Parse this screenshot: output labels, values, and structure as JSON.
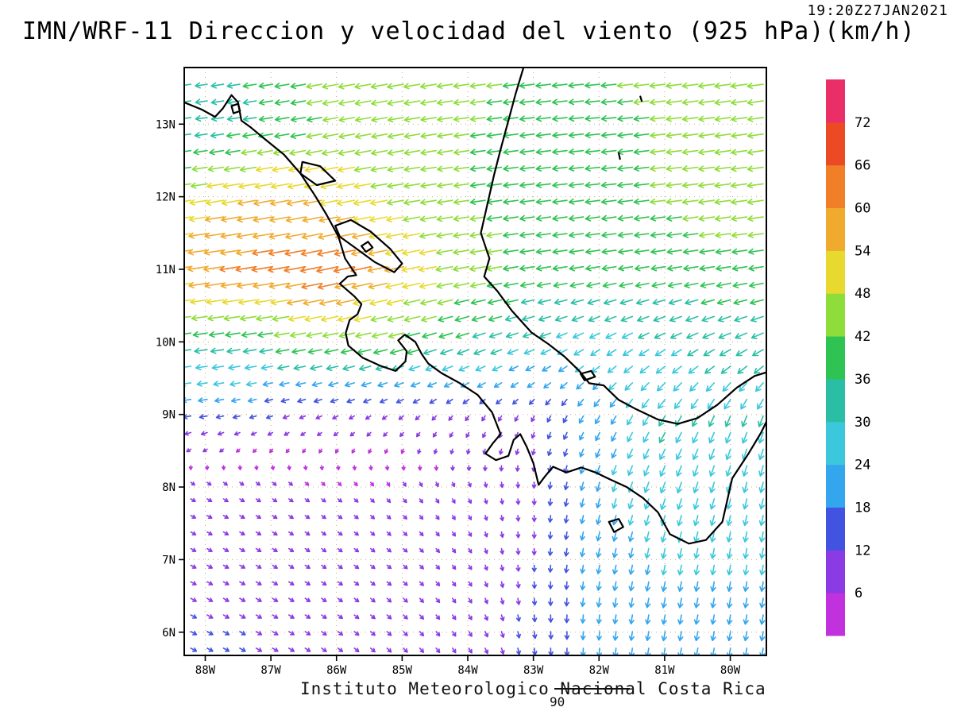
{
  "page": {
    "title": "IMN/WRF-11 Direccion y velocidad del viento (925 hPa)(km/h)",
    "timestamp": "19:20Z27JAN2021",
    "caption": "Instituto Meteorologico Nacional Costa Rica",
    "caption_number": "90"
  },
  "chart_data": {
    "type": "heatmap",
    "subtype": "wind-vector-field-map",
    "title": "IMN/WRF-11 Direccion y velocidad del viento (925 hPa)(km/h)",
    "valid_time": "19:20Z27JAN2021",
    "level": "925 hPa",
    "units": "km/h",
    "source_caption": "Instituto Meteorologico Nacional Costa Rica",
    "lon_range": [
      -88.32,
      -79.45
    ],
    "lat_range": [
      5.68,
      13.78
    ],
    "x_ticks": [
      {
        "value": -88,
        "label": "88W"
      },
      {
        "value": -87,
        "label": "87W"
      },
      {
        "value": -86,
        "label": "86W"
      },
      {
        "value": -85,
        "label": "85W"
      },
      {
        "value": -84,
        "label": "84W"
      },
      {
        "value": -83,
        "label": "83W"
      },
      {
        "value": -82,
        "label": "82W"
      },
      {
        "value": -81,
        "label": "81W"
      },
      {
        "value": -80,
        "label": "80W"
      }
    ],
    "y_ticks": [
      {
        "value": 6,
        "label": "6N"
      },
      {
        "value": 7,
        "label": "7N"
      },
      {
        "value": 8,
        "label": "8N"
      },
      {
        "value": 9,
        "label": "9N"
      },
      {
        "value": 10,
        "label": "10N"
      },
      {
        "value": 11,
        "label": "11N"
      },
      {
        "value": 12,
        "label": "12N"
      },
      {
        "value": 13,
        "label": "13N"
      }
    ],
    "grid": {
      "lats": [
        6,
        7,
        8,
        9,
        10,
        11,
        12,
        13,
        14
      ],
      "lons": [
        -89,
        -88,
        -87,
        -86,
        -85,
        -84,
        -83,
        -82,
        -81,
        -80,
        -79
      ],
      "u_kmh": [
        [
          12,
          11,
          10,
          8,
          7,
          5,
          2,
          -2,
          -4,
          -4,
          -4
        ],
        [
          10,
          9,
          8,
          7,
          6,
          4,
          0,
          -4,
          -5,
          -4,
          -4
        ],
        [
          8,
          7,
          6,
          5,
          4,
          3,
          0,
          -6,
          -10,
          -7,
          -5
        ],
        [
          -20,
          -17,
          -12,
          -10,
          -8,
          -6,
          -5,
          -10,
          -16,
          -12,
          -10
        ],
        [
          -34,
          -36,
          -38,
          -40,
          -40,
          -34,
          -28,
          -24,
          -26,
          -30,
          -30
        ],
        [
          -52,
          -58,
          -62,
          -65,
          -55,
          -45,
          -40,
          -38,
          -38,
          -40,
          -40
        ],
        [
          -46,
          -50,
          -55,
          -52,
          -46,
          -42,
          -40,
          -40,
          -42,
          -45,
          -45
        ],
        [
          -28,
          -30,
          -36,
          -42,
          -44,
          -42,
          -40,
          -40,
          -42,
          -44,
          -44
        ],
        [
          -30,
          -32,
          -38,
          -46,
          -48,
          -44,
          -42,
          -42,
          -44,
          -46,
          -46
        ]
      ],
      "v_kmh": [
        [
          -6,
          -6,
          -6,
          -6,
          -7,
          -8,
          -14,
          -20,
          -22,
          -22,
          -22
        ],
        [
          -5,
          -5,
          -5,
          -5,
          -5,
          -6,
          -12,
          -20,
          -24,
          -24,
          -24
        ],
        [
          -4,
          -4,
          -4,
          -4,
          -5,
          -6,
          -10,
          -22,
          -28,
          -26,
          -26
        ],
        [
          -3,
          -3,
          -4,
          -5,
          -6,
          -8,
          -10,
          -18,
          -26,
          -28,
          -28
        ],
        [
          -4,
          -5,
          -6,
          -8,
          -10,
          -12,
          -10,
          -14,
          -14,
          -14,
          -14
        ],
        [
          -6,
          -8,
          -10,
          -14,
          -12,
          -8,
          -6,
          -6,
          -6,
          -6,
          -6
        ],
        [
          -5,
          -8,
          -10,
          -10,
          -8,
          -6,
          -5,
          -5,
          -5,
          -6,
          -6
        ],
        [
          -4,
          -4,
          -6,
          -8,
          -8,
          -6,
          -5,
          -4,
          -5,
          -6,
          -6
        ],
        [
          -5,
          -5,
          -6,
          -8,
          -8,
          -6,
          -5,
          -4,
          -5,
          -6,
          -6
        ]
      ]
    },
    "colorbar": {
      "tick_values": [
        6,
        12,
        18,
        24,
        30,
        36,
        42,
        48,
        54,
        60,
        66,
        72
      ],
      "colors": [
        "#c131de",
        "#8b3be3",
        "#4153e0",
        "#33a6ee",
        "#3bc8dc",
        "#2abfa4",
        "#2ec352",
        "#8edd3a",
        "#e8d92f",
        "#f0ab2e",
        "#f07f27",
        "#ec4a25",
        "#e92e68"
      ]
    },
    "map_colors": {
      "coastline": "#000000",
      "gridline": "#cc9966",
      "axis": "#000000"
    },
    "coastlines": [
      {
        "name": "pacific-coast",
        "closed": false,
        "points": [
          [
            -88.32,
            13.3
          ],
          [
            -88.05,
            13.2
          ],
          [
            -87.85,
            13.1
          ],
          [
            -87.73,
            13.22
          ],
          [
            -87.6,
            13.4
          ],
          [
            -87.5,
            13.3
          ],
          [
            -87.45,
            13.05
          ],
          [
            -87.3,
            12.95
          ],
          [
            -87.1,
            12.8
          ],
          [
            -86.8,
            12.58
          ],
          [
            -86.55,
            12.32
          ],
          [
            -86.33,
            12.02
          ],
          [
            -86.15,
            11.75
          ],
          [
            -85.97,
            11.45
          ],
          [
            -85.87,
            11.15
          ],
          [
            -85.7,
            10.92
          ],
          [
            -85.83,
            10.9
          ],
          [
            -85.95,
            10.8
          ],
          [
            -85.73,
            10.63
          ],
          [
            -85.62,
            10.52
          ],
          [
            -85.68,
            10.38
          ],
          [
            -85.8,
            10.3
          ],
          [
            -85.86,
            10.12
          ],
          [
            -85.82,
            9.95
          ],
          [
            -85.6,
            9.78
          ],
          [
            -85.33,
            9.67
          ],
          [
            -85.1,
            9.6
          ],
          [
            -84.95,
            9.73
          ],
          [
            -84.93,
            9.87
          ],
          [
            -85.06,
            10.02
          ],
          [
            -84.96,
            10.1
          ],
          [
            -84.8,
            10.0
          ],
          [
            -84.7,
            9.83
          ],
          [
            -84.6,
            9.7
          ],
          [
            -84.4,
            9.57
          ],
          [
            -84.12,
            9.43
          ],
          [
            -83.85,
            9.27
          ],
          [
            -83.63,
            9.03
          ],
          [
            -83.5,
            8.73
          ],
          [
            -83.62,
            8.6
          ],
          [
            -83.73,
            8.46
          ],
          [
            -83.57,
            8.37
          ],
          [
            -83.38,
            8.43
          ],
          [
            -83.3,
            8.65
          ],
          [
            -83.2,
            8.73
          ],
          [
            -83.1,
            8.55
          ],
          [
            -83.0,
            8.33
          ],
          [
            -82.92,
            8.03
          ],
          [
            -82.82,
            8.15
          ],
          [
            -82.7,
            8.28
          ],
          [
            -82.5,
            8.2
          ],
          [
            -82.27,
            8.27
          ],
          [
            -82.05,
            8.2
          ],
          [
            -81.82,
            8.1
          ],
          [
            -81.58,
            8.0
          ],
          [
            -81.33,
            7.85
          ],
          [
            -81.1,
            7.65
          ],
          [
            -80.92,
            7.35
          ],
          [
            -80.63,
            7.22
          ],
          [
            -80.37,
            7.27
          ],
          [
            -80.12,
            7.52
          ],
          [
            -80.05,
            7.8
          ],
          [
            -79.97,
            8.12
          ],
          [
            -79.73,
            8.45
          ],
          [
            -79.53,
            8.75
          ],
          [
            -79.45,
            8.9
          ]
        ]
      },
      {
        "name": "caribbean-coast",
        "closed": false,
        "points": [
          [
            -83.15,
            13.78
          ],
          [
            -83.27,
            13.42
          ],
          [
            -83.38,
            13.05
          ],
          [
            -83.5,
            12.65
          ],
          [
            -83.6,
            12.3
          ],
          [
            -83.7,
            11.9
          ],
          [
            -83.8,
            11.5
          ],
          [
            -83.67,
            11.15
          ],
          [
            -83.75,
            10.9
          ],
          [
            -83.55,
            10.7
          ],
          [
            -83.33,
            10.43
          ],
          [
            -83.03,
            10.13
          ],
          [
            -82.77,
            9.97
          ],
          [
            -82.53,
            9.8
          ],
          [
            -82.3,
            9.6
          ],
          [
            -82.15,
            9.43
          ],
          [
            -81.93,
            9.4
          ],
          [
            -81.7,
            9.2
          ],
          [
            -81.43,
            9.07
          ],
          [
            -81.1,
            8.93
          ],
          [
            -80.8,
            8.87
          ],
          [
            -80.5,
            8.95
          ],
          [
            -80.2,
            9.13
          ],
          [
            -79.9,
            9.37
          ],
          [
            -79.63,
            9.53
          ],
          [
            -79.45,
            9.58
          ]
        ]
      },
      {
        "name": "lake-nicaragua",
        "closed": true,
        "points": [
          [
            -86.02,
            11.6
          ],
          [
            -85.78,
            11.68
          ],
          [
            -85.48,
            11.52
          ],
          [
            -85.18,
            11.28
          ],
          [
            -85.0,
            11.08
          ],
          [
            -85.12,
            10.96
          ],
          [
            -85.42,
            11.1
          ],
          [
            -85.72,
            11.3
          ],
          [
            -85.95,
            11.45
          ]
        ]
      },
      {
        "name": "lake-managua",
        "closed": true,
        "points": [
          [
            -86.52,
            12.48
          ],
          [
            -86.25,
            12.42
          ],
          [
            -86.02,
            12.22
          ],
          [
            -86.3,
            12.16
          ],
          [
            -86.55,
            12.32
          ]
        ]
      },
      {
        "name": "ometepe-island",
        "closed": true,
        "points": [
          [
            -85.62,
            11.32
          ],
          [
            -85.52,
            11.38
          ],
          [
            -85.45,
            11.3
          ],
          [
            -85.55,
            11.24
          ]
        ]
      },
      {
        "name": "fonseca-island",
        "closed": true,
        "points": [
          [
            -87.6,
            13.25
          ],
          [
            -87.5,
            13.28
          ],
          [
            -87.47,
            13.18
          ],
          [
            -87.57,
            13.15
          ]
        ]
      },
      {
        "name": "coiba-island",
        "closed": true,
        "points": [
          [
            -81.85,
            7.52
          ],
          [
            -81.7,
            7.56
          ],
          [
            -81.63,
            7.45
          ],
          [
            -81.77,
            7.38
          ]
        ]
      },
      {
        "name": "bocas-island",
        "closed": true,
        "points": [
          [
            -82.28,
            9.56
          ],
          [
            -82.12,
            9.6
          ],
          [
            -82.06,
            9.52
          ],
          [
            -82.22,
            9.47
          ]
        ]
      },
      {
        "name": "providencia-island",
        "closed": false,
        "points": [
          [
            -81.37,
            13.38
          ],
          [
            -81.35,
            13.32
          ]
        ]
      },
      {
        "name": "san-andres-island",
        "closed": false,
        "points": [
          [
            -81.7,
            12.6
          ],
          [
            -81.68,
            12.52
          ]
        ]
      }
    ]
  }
}
